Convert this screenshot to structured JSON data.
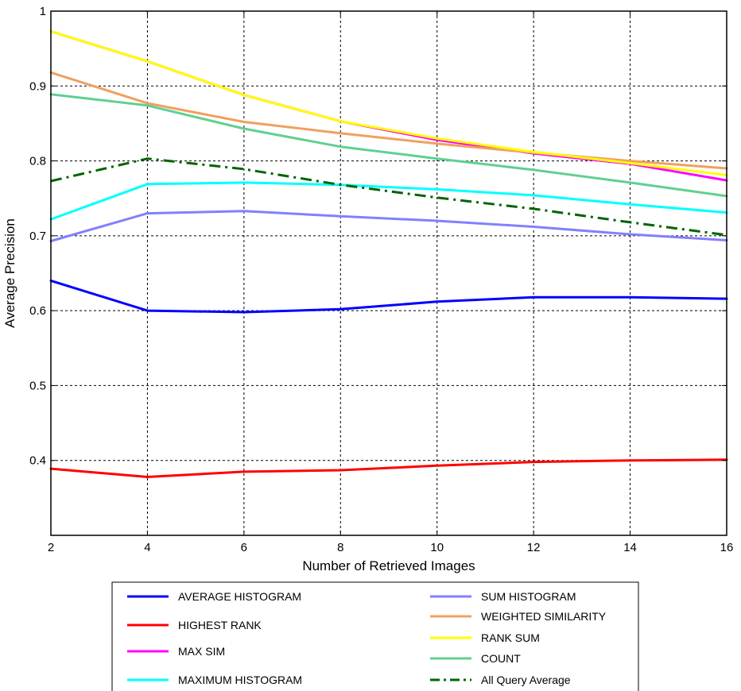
{
  "chart_data": {
    "type": "line",
    "xlabel": "Number of Retrieved Images",
    "ylabel": "Average Precision",
    "xlim": [
      2,
      16
    ],
    "ylim": [
      0.3,
      1.0
    ],
    "xticks": [
      2,
      4,
      6,
      8,
      10,
      12,
      14,
      16
    ],
    "yticks": [
      0.4,
      0.5,
      0.6,
      0.7,
      0.8,
      0.9,
      1
    ],
    "xtick_labels": [
      "2",
      "4",
      "6",
      "8",
      "10",
      "12",
      "14",
      "16"
    ],
    "ytick_labels": [
      "0.4",
      "0.5",
      "0.6",
      "0.7",
      "0.8",
      "0.9",
      "1"
    ],
    "grid": true,
    "legend_position": "bottom",
    "series": [
      {
        "name": "AVERAGE HISTOGRAM",
        "color": "#0000ff",
        "style": "solid",
        "x": [
          2,
          4,
          6,
          8,
          10,
          12,
          14,
          16
        ],
        "y": [
          0.64,
          0.6,
          0.598,
          0.602,
          0.612,
          0.618,
          0.618,
          0.616
        ]
      },
      {
        "name": "HIGHEST RANK",
        "color": "#ff0000",
        "style": "solid",
        "x": [
          2,
          4,
          6,
          8,
          10,
          12,
          14,
          16
        ],
        "y": [
          0.389,
          0.378,
          0.385,
          0.387,
          0.393,
          0.398,
          0.4,
          0.401
        ]
      },
      {
        "name": "MAX SIM",
        "color": "#ff00ff",
        "style": "solid",
        "x": [
          2,
          4,
          6,
          8,
          10,
          12,
          14,
          16
        ],
        "y": [
          0.973,
          0.933,
          0.888,
          0.853,
          0.828,
          0.81,
          0.796,
          0.774
        ]
      },
      {
        "name": "MAXIMUM HISTOGRAM",
        "color": "#00ffff",
        "style": "solid",
        "x": [
          2,
          4,
          6,
          8,
          10,
          12,
          14,
          16
        ],
        "y": [
          0.722,
          0.769,
          0.771,
          0.768,
          0.762,
          0.754,
          0.742,
          0.731
        ]
      },
      {
        "name": "SUM HISTOGRAM",
        "color": "#8080ff",
        "style": "solid",
        "x": [
          2,
          4,
          6,
          8,
          10,
          12,
          14,
          16
        ],
        "y": [
          0.693,
          0.73,
          0.733,
          0.726,
          0.72,
          0.712,
          0.702,
          0.694
        ]
      },
      {
        "name": "WEIGHTED SIMILARITY",
        "color": "#f0a060",
        "style": "solid",
        "x": [
          2,
          4,
          6,
          8,
          10,
          12,
          14,
          16
        ],
        "y": [
          0.918,
          0.877,
          0.852,
          0.837,
          0.823,
          0.811,
          0.8,
          0.79
        ]
      },
      {
        "name": "RANK SUM",
        "color": "#ffff00",
        "style": "solid",
        "x": [
          2,
          4,
          6,
          8,
          10,
          12,
          14,
          16
        ],
        "y": [
          0.973,
          0.933,
          0.888,
          0.853,
          0.83,
          0.812,
          0.797,
          0.781
        ]
      },
      {
        "name": "COUNT",
        "color": "#60d090",
        "style": "solid",
        "x": [
          2,
          4,
          6,
          8,
          10,
          12,
          14,
          16
        ],
        "y": [
          0.889,
          0.874,
          0.843,
          0.819,
          0.803,
          0.788,
          0.771,
          0.753
        ]
      },
      {
        "name": "All Query Average",
        "color": "#006400",
        "style": "dashdot",
        "x": [
          2,
          4,
          6,
          8,
          10,
          12,
          14,
          16
        ],
        "y": [
          0.773,
          0.803,
          0.789,
          0.768,
          0.751,
          0.736,
          0.718,
          0.701
        ]
      }
    ],
    "legend_order": [
      "AVERAGE HISTOGRAM",
      "SUM HISTOGRAM",
      "HIGHEST RANK",
      "WEIGHTED SIMILARITY",
      "MAX SIM",
      "RANK SUM",
      "MAXIMUM HISTOGRAM",
      "COUNT",
      "All Query Average"
    ]
  }
}
